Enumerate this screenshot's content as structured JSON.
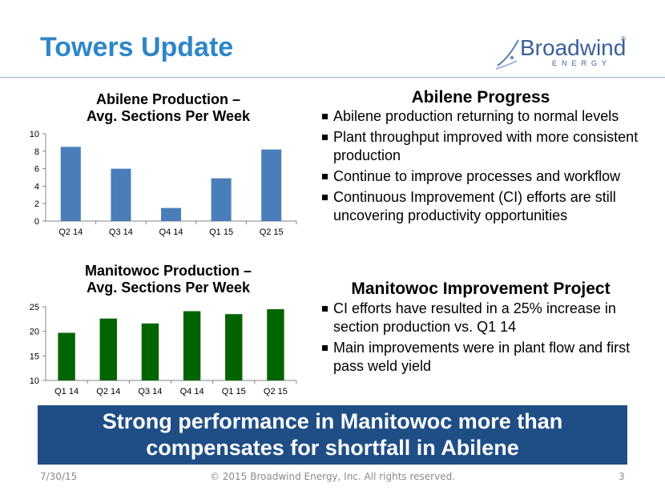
{
  "slide": {
    "title": "Towers Update",
    "logo_text": "Broadwind",
    "logo_subtext": "ENERGY",
    "logo_mark": "®"
  },
  "colors": {
    "title": "#2e86c8",
    "abilene_bar": "#4a7ebb",
    "manitowoc_bar": "#006400",
    "banner": "#1f4e86"
  },
  "abilene": {
    "heading": "Abilene Progress",
    "bullets": [
      "Abilene production returning to normal levels",
      "Plant throughput improved with more consistent production",
      "Continue to improve processes and workflow",
      "Continuous Improvement (CI) efforts are still uncovering productivity opportunities"
    ]
  },
  "manitowoc": {
    "heading": "Manitowoc Improvement Project",
    "bullets": [
      "CI efforts have resulted in a 25% increase in section production vs. Q1 14",
      "Main improvements were in plant flow and first pass weld yield"
    ]
  },
  "banner": {
    "line1": "Strong performance in Manitowoc more than",
    "line2": "compensates for shortfall in Abilene"
  },
  "footer": {
    "date": "7/30/15",
    "copyright": "© 2015 Broadwind Energy, Inc. All rights reserved.",
    "page": "3"
  },
  "chart_data": [
    {
      "type": "bar",
      "title_line1": "Abilene Production –",
      "title_line2": "Avg. Sections Per Week",
      "categories": [
        "Q2 14",
        "Q3 14",
        "Q4 14",
        "Q1 15",
        "Q2 15"
      ],
      "values": [
        8.5,
        6.0,
        1.5,
        4.9,
        8.2
      ],
      "ylim": [
        0,
        10
      ],
      "yticks": [
        0,
        2,
        4,
        6,
        8,
        10
      ],
      "grid": false,
      "color": "#4a7ebb"
    },
    {
      "type": "bar",
      "title_line1": "Manitowoc Production –",
      "title_line2": "Avg. Sections Per Week",
      "categories": [
        "Q1 14",
        "Q2 14",
        "Q3 14",
        "Q4 14",
        "Q1 15",
        "Q2 15"
      ],
      "values": [
        19.7,
        22.6,
        21.6,
        24.1,
        23.5,
        24.5
      ],
      "ylim": [
        10,
        25
      ],
      "yticks": [
        10,
        15,
        20,
        25
      ],
      "grid": false,
      "color": "#006400"
    }
  ]
}
